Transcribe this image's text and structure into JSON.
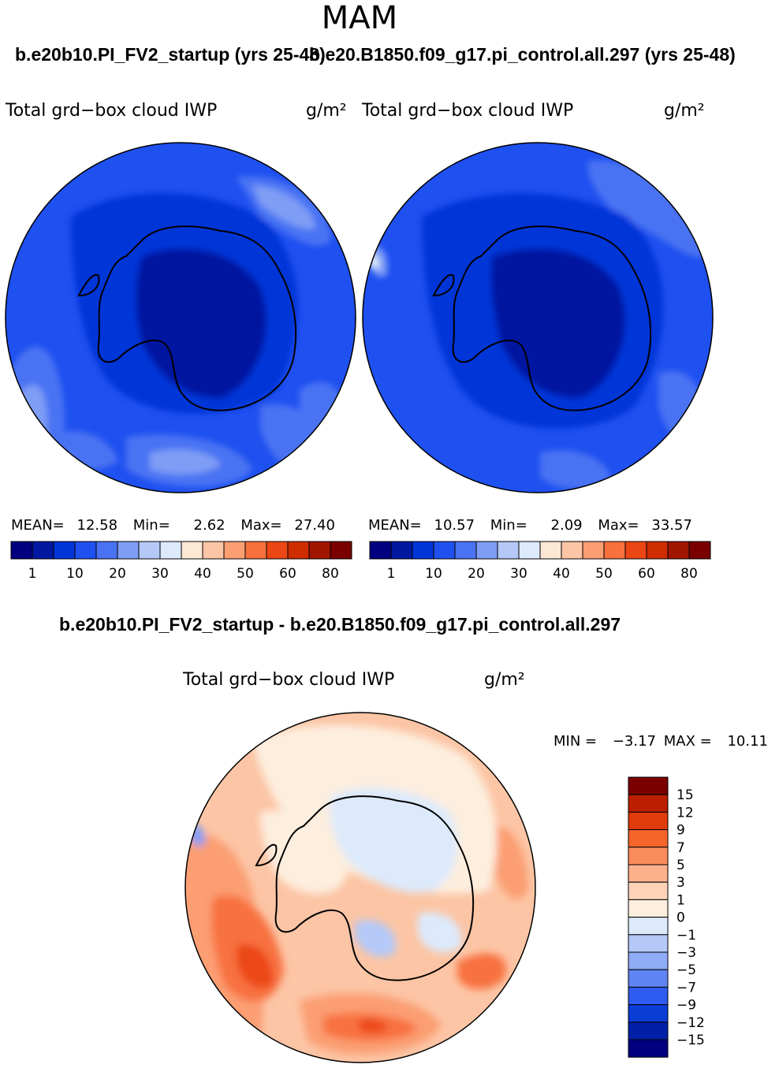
{
  "page": {
    "season": "MAM",
    "case_a_title": "b.e20b10.PI_FV2_startup (yrs 25-48)",
    "case_b_title": "b.e20.B1850.f09_g17.pi_control.all.297 (yrs 25-48)",
    "diff_title": "b.e20b10.PI_FV2_startup - b.e20.B1850.f09_g17.pi_control.all.297"
  },
  "panels": {
    "left": {
      "variable": "Total grd−box cloud IWP",
      "units": "g/m²",
      "mean_label": "MEAN=",
      "mean": "12.58",
      "min_label": "Min=",
      "min": "2.62",
      "max_label": "Max=",
      "max": "27.40"
    },
    "right": {
      "variable": "Total grd−box cloud IWP",
      "units": "g/m²",
      "mean_label": "MEAN=",
      "mean": "10.57",
      "min_label": "Min=",
      "min": "2.09",
      "max_label": "Max=",
      "max": "33.57"
    },
    "diff": {
      "variable": "Total grd−box cloud IWP",
      "units": "g/m²",
      "min_label": "MIN =",
      "min": "−3.17",
      "max_label": "MAX =",
      "max": "10.11"
    }
  },
  "chart_data": [
    {
      "type": "heatmap",
      "name": "Case A: b.e20b10.PI_FV2_startup (yrs 25-48)",
      "projection": "south polar stereographic",
      "title": "Total grd-box cloud IWP",
      "units": "g/m2",
      "mean": 12.58,
      "min": 2.62,
      "max": 27.4,
      "colorbar": {
        "orientation": "horizontal",
        "tick_labels": [
          "1",
          "10",
          "20",
          "30",
          "40",
          "50",
          "60",
          "80"
        ],
        "colors": [
          "#000080",
          "#0018a0",
          "#0036d8",
          "#1f50f0",
          "#4a73f3",
          "#7e9df5",
          "#b4c9f8",
          "#dceafc",
          "#fde8d6",
          "#fcc5a5",
          "#fb9e72",
          "#f8713f",
          "#ec4614",
          "#cf2c00",
          "#a01500",
          "#7a0000"
        ]
      }
    },
    {
      "type": "heatmap",
      "name": "Case B: b.e20.B1850.f09_g17.pi_control.all.297 (yrs 25-48)",
      "projection": "south polar stereographic",
      "title": "Total grd-box cloud IWP",
      "units": "g/m2",
      "mean": 10.57,
      "min": 2.09,
      "max": 33.57,
      "colorbar": {
        "orientation": "horizontal",
        "tick_labels": [
          "1",
          "10",
          "20",
          "30",
          "40",
          "50",
          "60",
          "80"
        ],
        "colors": [
          "#000080",
          "#0018a0",
          "#0036d8",
          "#1f50f0",
          "#4a73f3",
          "#7e9df5",
          "#b4c9f8",
          "#dceafc",
          "#fde8d6",
          "#fcc5a5",
          "#fb9e72",
          "#f8713f",
          "#ec4614",
          "#cf2c00",
          "#a01500",
          "#7a0000"
        ]
      }
    },
    {
      "type": "heatmap",
      "name": "Difference: A - B",
      "projection": "south polar stereographic",
      "title": "Total grd-box cloud IWP",
      "units": "g/m2",
      "min": -3.17,
      "max": 10.11,
      "colorbar": {
        "orientation": "vertical",
        "tick_labels": [
          "15",
          "12",
          "9",
          "7",
          "5",
          "3",
          "1",
          "0",
          "−1",
          "−3",
          "−5",
          "−7",
          "−9",
          "−12",
          "−15"
        ],
        "colors": [
          "#7a0000",
          "#bb1f00",
          "#e03b0a",
          "#f5652a",
          "#fb8c5c",
          "#fcb08c",
          "#fdd2b8",
          "#fdeede",
          "#dceafc",
          "#b4c9f8",
          "#8fadf6",
          "#5f84f3",
          "#2f5cf0",
          "#0a3cd6",
          "#0020a8",
          "#000080"
        ]
      }
    }
  ]
}
